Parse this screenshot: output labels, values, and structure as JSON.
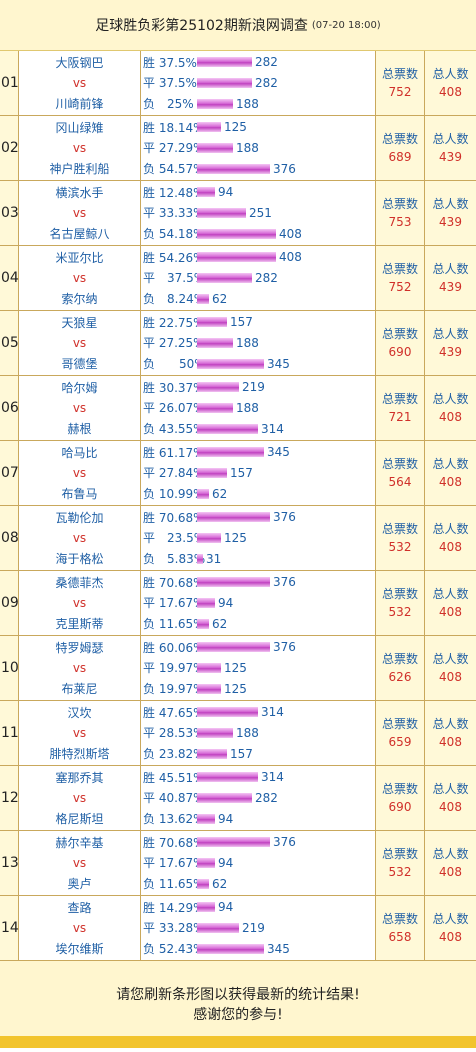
{
  "header": {
    "title": "足球胜负彩第25102期新浪网调查",
    "time": "(07-20 18:00)"
  },
  "labels": {
    "vs": "vs",
    "total_label": "总票数",
    "people_label": "总人数"
  },
  "footer": {
    "line1": "请您刷新条形图以获得最新的统计结果!",
    "line2": "感谢您的参与!"
  },
  "bar_color": "#D66AD6",
  "max_count": 408,
  "matches": [
    {
      "num": "01",
      "home": "大阪钢巴",
      "away": "川崎前锋",
      "opts": [
        {
          "label": "胜 37.5%",
          "count": 282
        },
        {
          "label": "平 37.5%",
          "count": 282
        },
        {
          "label": "负　25%",
          "count": 188
        }
      ],
      "total": "752",
      "people": "408"
    },
    {
      "num": "02",
      "home": "冈山绿雉",
      "away": "神户胜利船",
      "opts": [
        {
          "label": "胜 18.14%",
          "count": 125
        },
        {
          "label": "平 27.29%",
          "count": 188
        },
        {
          "label": "负 54.57%",
          "count": 376
        }
      ],
      "total": "689",
      "people": "439"
    },
    {
      "num": "03",
      "home": "横滨水手",
      "away": "名古屋鲸八",
      "opts": [
        {
          "label": "胜 12.48%",
          "count": 94
        },
        {
          "label": "平 33.33%",
          "count": 251
        },
        {
          "label": "负 54.18%",
          "count": 408
        }
      ],
      "total": "753",
      "people": "439"
    },
    {
      "num": "04",
      "home": "米亚尔比",
      "away": "索尔纳",
      "opts": [
        {
          "label": "胜 54.26%",
          "count": 408
        },
        {
          "label": "平　37.5%",
          "count": 282
        },
        {
          "label": "负　8.24%",
          "count": 62
        }
      ],
      "total": "752",
      "people": "439"
    },
    {
      "num": "05",
      "home": "天狼星",
      "away": "哥德堡",
      "opts": [
        {
          "label": "胜 22.75%",
          "count": 157
        },
        {
          "label": "平 27.25%",
          "count": 188
        },
        {
          "label": "负　　50%",
          "count": 345
        }
      ],
      "total": "690",
      "people": "439"
    },
    {
      "num": "06",
      "home": "哈尔姆",
      "away": "赫根",
      "opts": [
        {
          "label": "胜 30.37%",
          "count": 219
        },
        {
          "label": "平 26.07%",
          "count": 188
        },
        {
          "label": "负 43.55%",
          "count": 314
        }
      ],
      "total": "721",
      "people": "408"
    },
    {
      "num": "07",
      "home": "哈马比",
      "away": "布鲁马",
      "opts": [
        {
          "label": "胜 61.17%",
          "count": 345
        },
        {
          "label": "平 27.84%",
          "count": 157
        },
        {
          "label": "负 10.99%",
          "count": 62
        }
      ],
      "total": "564",
      "people": "408"
    },
    {
      "num": "08",
      "home": "瓦勒伦加",
      "away": "海于格松",
      "opts": [
        {
          "label": "胜 70.68%",
          "count": 376
        },
        {
          "label": "平　23.5%",
          "count": 125
        },
        {
          "label": "负　5.83%",
          "count": 31
        }
      ],
      "total": "532",
      "people": "408"
    },
    {
      "num": "09",
      "home": "桑德菲杰",
      "away": "克里斯蒂",
      "opts": [
        {
          "label": "胜 70.68%",
          "count": 376
        },
        {
          "label": "平 17.67%",
          "count": 94
        },
        {
          "label": "负 11.65%",
          "count": 62
        }
      ],
      "total": "532",
      "people": "408"
    },
    {
      "num": "10",
      "home": "特罗姆瑟",
      "away": "布莱尼",
      "opts": [
        {
          "label": "胜 60.06%",
          "count": 376
        },
        {
          "label": "平 19.97%",
          "count": 125
        },
        {
          "label": "负 19.97%",
          "count": 125
        }
      ],
      "total": "626",
      "people": "408"
    },
    {
      "num": "11",
      "home": "汉坎",
      "away": "腓特烈斯塔",
      "opts": [
        {
          "label": "胜 47.65%",
          "count": 314
        },
        {
          "label": "平 28.53%",
          "count": 188
        },
        {
          "label": "负 23.82%",
          "count": 157
        }
      ],
      "total": "659",
      "people": "408"
    },
    {
      "num": "12",
      "home": "塞那乔其",
      "away": "格尼斯坦",
      "opts": [
        {
          "label": "胜 45.51%",
          "count": 314
        },
        {
          "label": "平 40.87%",
          "count": 282
        },
        {
          "label": "负 13.62%",
          "count": 94
        }
      ],
      "total": "690",
      "people": "408"
    },
    {
      "num": "13",
      "home": "赫尔辛基",
      "away": "奥卢",
      "opts": [
        {
          "label": "胜 70.68%",
          "count": 376
        },
        {
          "label": "平 17.67%",
          "count": 94
        },
        {
          "label": "负 11.65%",
          "count": 62
        }
      ],
      "total": "532",
      "people": "408"
    },
    {
      "num": "14",
      "home": "查路",
      "away": "埃尔维斯",
      "opts": [
        {
          "label": "胜 14.29%",
          "count": 94
        },
        {
          "label": "平 33.28%",
          "count": 219
        },
        {
          "label": "负 52.43%",
          "count": 345
        }
      ],
      "total": "658",
      "people": "408"
    }
  ]
}
